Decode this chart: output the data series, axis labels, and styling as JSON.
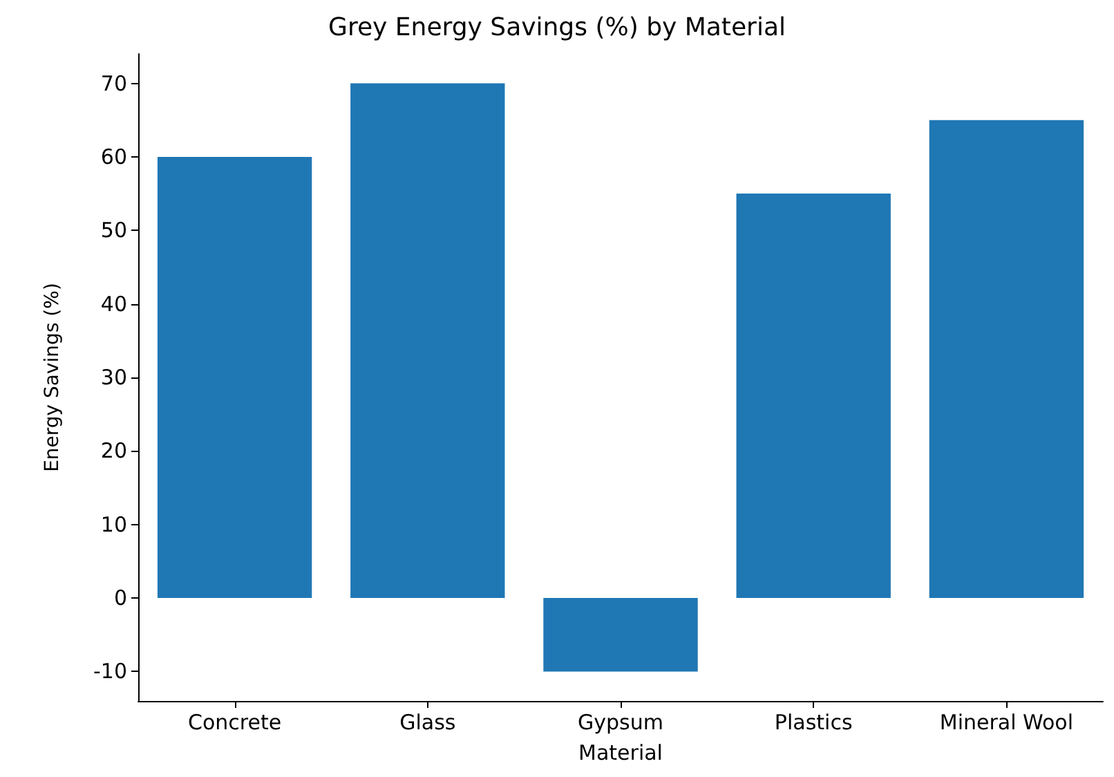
{
  "chart_data": {
    "type": "bar",
    "title": "Grey Energy Savings (%) by Material",
    "xlabel": "Material",
    "ylabel": "Energy Savings (%)",
    "categories": [
      "Concrete",
      "Glass",
      "Gypsum",
      "Plastics",
      "Mineral Wool"
    ],
    "values": [
      60,
      70,
      -10,
      55,
      65
    ],
    "color": "#1f77b4",
    "ylim": [
      -14,
      74
    ],
    "yticks": [
      -10,
      0,
      10,
      20,
      30,
      40,
      50,
      60,
      70
    ],
    "grid": false
  }
}
